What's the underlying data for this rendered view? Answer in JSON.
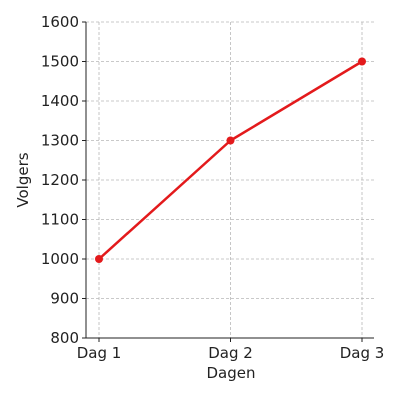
{
  "chart_data": {
    "type": "line",
    "title": "",
    "xlabel": "Dagen",
    "ylabel": "Volgers",
    "categories": [
      "Dag 1",
      "Dag 2",
      "Dag 3"
    ],
    "series": [
      {
        "values": [
          1000,
          1300,
          1500
        ],
        "color": "#e31a1c"
      }
    ],
    "ylim": [
      800,
      1600
    ],
    "yticks": [
      800,
      900,
      1000,
      1100,
      1200,
      1300,
      1400,
      1500,
      1600
    ],
    "grid": true,
    "legend": "none"
  }
}
